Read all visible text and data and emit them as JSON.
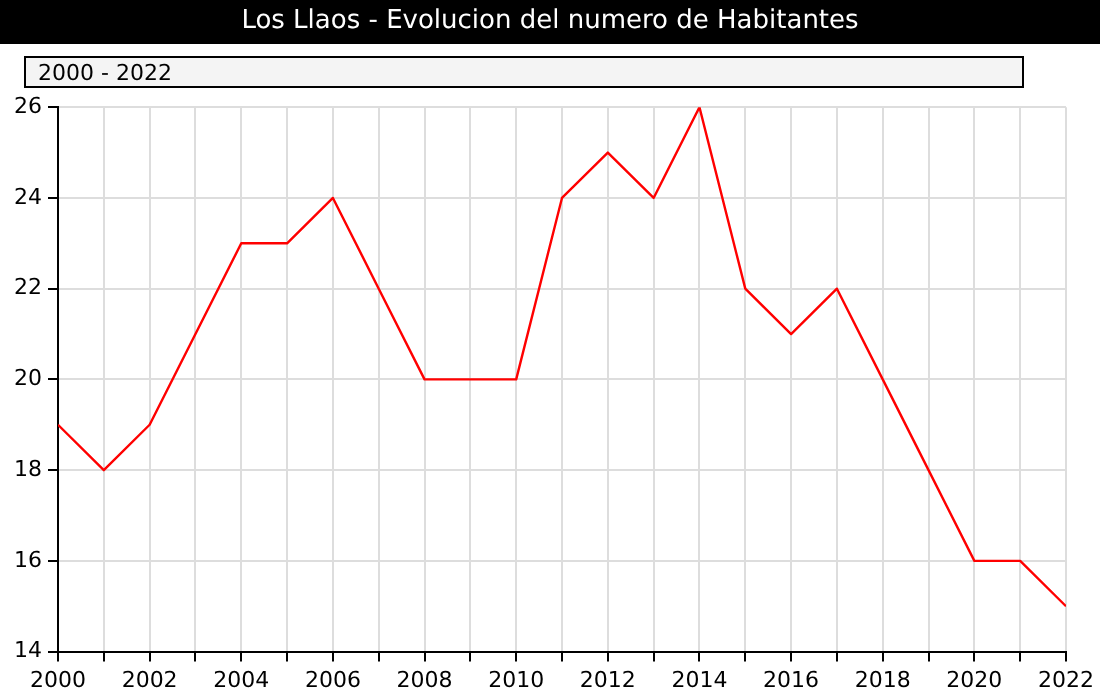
{
  "chart_data": {
    "type": "line",
    "title": "Los Llaos - Evolucion del numero de Habitantes",
    "annotations": [
      "2000 - 2022"
    ],
    "x": [
      2000,
      2001,
      2002,
      2003,
      2004,
      2005,
      2006,
      2007,
      2008,
      2009,
      2010,
      2011,
      2012,
      2013,
      2014,
      2015,
      2016,
      2017,
      2018,
      2019,
      2020,
      2021,
      2022
    ],
    "series": [
      {
        "color": "#ff0000",
        "values": [
          19,
          18,
          19,
          21,
          23,
          23,
          24,
          22,
          20,
          20,
          20,
          24,
          25,
          24,
          26,
          22,
          21,
          22,
          20,
          18,
          16,
          16,
          15
        ]
      }
    ],
    "xlim": [
      2000,
      2022
    ],
    "xticks": [
      2000,
      {
        "value": 2001,
        "label": null
      },
      2002,
      {
        "value": 2003,
        "label": null
      },
      2004,
      {
        "value": 2005,
        "label": null
      },
      2006,
      {
        "value": 2007,
        "label": null
      },
      2008,
      {
        "value": 2009,
        "label": null
      },
      2010,
      {
        "value": 2011,
        "label": null
      },
      2012,
      {
        "value": 2013,
        "label": null
      },
      2014,
      {
        "value": 2015,
        "label": null
      },
      2016,
      {
        "value": 2017,
        "label": null
      },
      2018,
      {
        "value": 2019,
        "label": null
      },
      2020,
      {
        "value": 2021,
        "label": null
      },
      2022
    ],
    "ylim": [
      14,
      26
    ],
    "yticks": [
      14,
      16,
      18,
      20,
      22,
      24,
      26
    ],
    "grid": true,
    "legend": false,
    "marker": "none",
    "line_style": "solid"
  }
}
